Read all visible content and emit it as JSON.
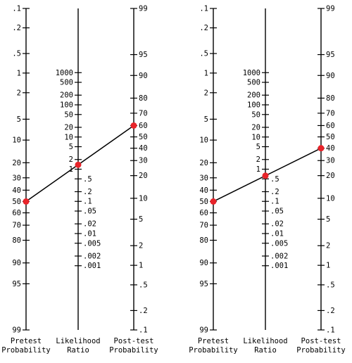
{
  "nomograms": [
    {
      "pretest": {
        "title_lines": [
          "Pretest",
          "Probability"
        ],
        "ticks": [
          ".1",
          ".2",
          ".5",
          "1",
          "2",
          "5",
          "10",
          "20",
          "30",
          "40",
          "50",
          "60",
          "70",
          "80",
          "90",
          "95",
          "99"
        ]
      },
      "likelihood": {
        "title_lines": [
          "Likelihood",
          "Ratio"
        ],
        "ticks": [
          "1000",
          "500",
          "200",
          "100",
          "50",
          "20",
          "10",
          "5",
          "2",
          "1",
          ".5",
          ".2",
          ".1",
          ".05",
          ".02",
          ".01",
          ".005",
          ".002",
          ".001"
        ]
      },
      "posttest": {
        "title_lines": [
          "Post-test",
          "Probability"
        ],
        "ticks": [
          "99",
          "95",
          "90",
          "80",
          "70",
          "60",
          "50",
          "40",
          "30",
          "20",
          "10",
          "5",
          "2",
          "1",
          ".5",
          ".2",
          ".1"
        ]
      },
      "line": {
        "pretest": 50,
        "likelihood_ratio": 1.5,
        "posttest": 60
      }
    },
    {
      "pretest": {
        "title_lines": [
          "Pretest",
          "Probability"
        ],
        "ticks": [
          ".1",
          ".2",
          ".5",
          "1",
          "2",
          "5",
          "10",
          "20",
          "30",
          "40",
          "50",
          "60",
          "70",
          "80",
          "90",
          "95",
          "99"
        ]
      },
      "likelihood": {
        "title_lines": [
          "Likelihood",
          "Ratio"
        ],
        "ticks": [
          "1000",
          "500",
          "200",
          "100",
          "50",
          "20",
          "10",
          "5",
          "2",
          "1",
          ".5",
          ".2",
          ".1",
          ".05",
          ".02",
          ".01",
          ".005",
          ".002",
          ".001"
        ]
      },
      "posttest": {
        "title_lines": [
          "Post-test",
          "Probability"
        ],
        "ticks": [
          "99",
          "95",
          "90",
          "80",
          "70",
          "60",
          "50",
          "40",
          "30",
          "20",
          "10",
          "5",
          "2",
          "1",
          ".5",
          ".2",
          ".1"
        ]
      },
      "line": {
        "pretest": 50,
        "likelihood_ratio": 0.67,
        "posttest": 40
      }
    }
  ],
  "colors": {
    "axis": "#000000",
    "marker": "#e8242a",
    "background": "#ffffff"
  }
}
